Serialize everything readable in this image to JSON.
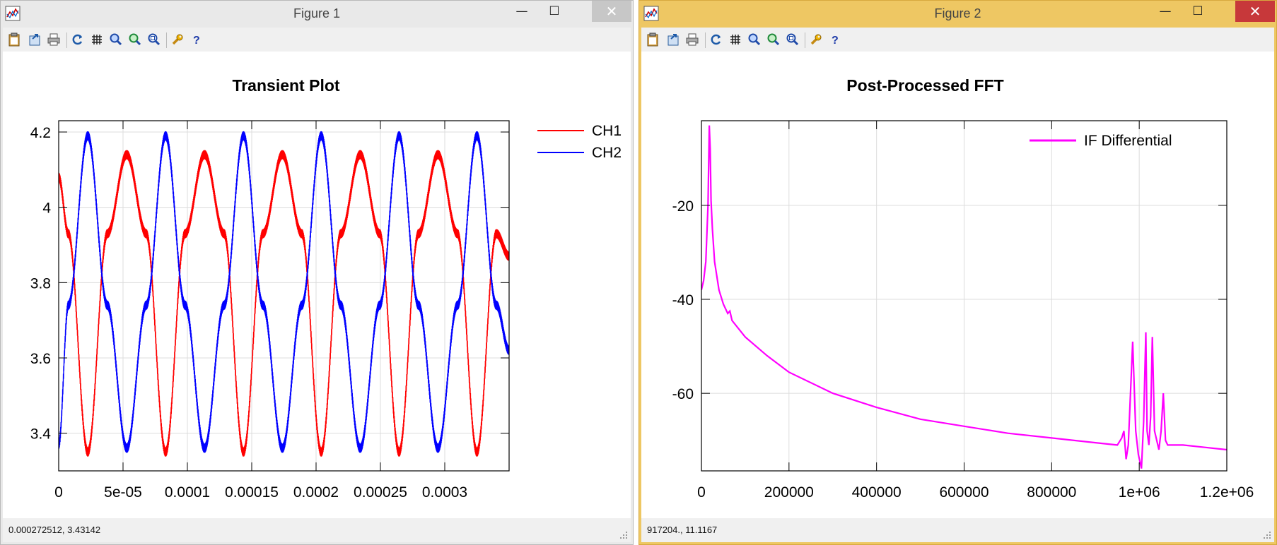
{
  "figure1": {
    "title": "Figure 1",
    "status": "0.000272512,  3.43142",
    "chart_data": {
      "type": "line",
      "title": "Transient Plot",
      "xlim": [
        0,
        0.00035
      ],
      "ylim": [
        3.3,
        4.23
      ],
      "x_ticks": [
        0,
        5e-05,
        0.0001,
        0.00015,
        0.0002,
        0.00025,
        0.0003
      ],
      "x_tick_labels": [
        "0",
        "5e-05",
        "0.0001",
        "0.00015",
        "0.0002",
        "0.00025",
        "0.0003"
      ],
      "y_ticks": [
        3.4,
        3.6,
        3.8,
        4.0,
        4.2
      ],
      "y_tick_labels": [
        "3.4",
        "3.6",
        "3.8",
        "4",
        "4.2"
      ],
      "grid": true,
      "legend": "outside-top-right",
      "series": [
        {
          "name": "CH1",
          "color": "#ff0000",
          "x": [
            0,
            7.5e-06,
            2.26e-05,
            3.78e-05,
            5.29e-05,
            6.8e-05,
            8.31e-05,
            9.82e-05,
            0.0001133,
            0.0001285,
            0.0001436,
            0.0001587,
            0.0001738,
            0.0001889,
            0.000204,
            0.0002192,
            0.0002343,
            0.0002494,
            0.0002645,
            0.0002796,
            0.0002947,
            0.0003099,
            0.000325,
            0.0003401,
            0.00035
          ],
          "y": [
            4.08,
            3.93,
            3.35,
            3.93,
            4.14,
            3.93,
            3.35,
            3.93,
            4.14,
            3.93,
            3.35,
            3.93,
            4.14,
            3.93,
            3.35,
            3.93,
            4.14,
            3.93,
            3.35,
            3.93,
            4.14,
            3.93,
            3.35,
            3.93,
            3.87
          ]
        },
        {
          "name": "CH2",
          "color": "#0000ff",
          "x": [
            0,
            7.5e-06,
            2.26e-05,
            3.78e-05,
            5.29e-05,
            6.8e-05,
            8.31e-05,
            9.82e-05,
            0.0001133,
            0.0001285,
            0.0001436,
            0.0001587,
            0.0001738,
            0.0001889,
            0.000204,
            0.0002192,
            0.0002343,
            0.0002494,
            0.0002645,
            0.0002796,
            0.0002947,
            0.0003099,
            0.000325,
            0.0003401,
            0.00035
          ],
          "y": [
            3.37,
            3.74,
            4.19,
            3.74,
            3.36,
            3.74,
            4.19,
            3.74,
            3.36,
            3.74,
            4.19,
            3.74,
            3.36,
            3.74,
            4.19,
            3.74,
            3.36,
            3.74,
            4.19,
            3.74,
            3.36,
            3.74,
            4.19,
            3.74,
            3.62
          ]
        }
      ]
    }
  },
  "figure2": {
    "title": "Figure 2",
    "status": "917204.,  11.1167",
    "chart_data": {
      "type": "line",
      "title": "Post-Processed FFT",
      "xlim": [
        0,
        1200000
      ],
      "ylim": [
        -76.5,
        -2
      ],
      "x_ticks": [
        0,
        200000,
        400000,
        600000,
        800000,
        1000000,
        1200000
      ],
      "x_tick_labels": [
        "0",
        "200000",
        "400000",
        "600000",
        "800000",
        "1e+06",
        "1.2e+06"
      ],
      "y_ticks": [
        -20,
        -40,
        -60
      ],
      "y_tick_labels": [
        "-20",
        "-40",
        "-60"
      ],
      "grid": true,
      "legend": "top-right",
      "series": [
        {
          "name": "IF Differential",
          "color": "#ff00ff",
          "x": [
            0,
            5000,
            10000,
            15000,
            18000,
            20000,
            22000,
            25000,
            30000,
            40000,
            50000,
            60000,
            65000,
            70000,
            100000,
            150000,
            200000,
            300000,
            400000,
            500000,
            600000,
            700000,
            800000,
            900000,
            950000,
            960000,
            965000,
            970000,
            975000,
            985000,
            992000,
            998000,
            1005000,
            1010000,
            1015000,
            1018000,
            1022000,
            1026000,
            1030000,
            1035000,
            1040000,
            1045000,
            1050000,
            1055000,
            1060000,
            1065000,
            1070000,
            1100000,
            1150000,
            1200000
          ],
          "y": [
            -38,
            -36,
            -32,
            -20,
            -3,
            -8,
            -19,
            -25,
            -32,
            -38,
            -41,
            -43,
            -42.5,
            -44.5,
            -48,
            -52,
            -55.5,
            -60,
            -63,
            -65.5,
            -67,
            -68.5,
            -69.5,
            -70.5,
            -71,
            -69.5,
            -68,
            -74,
            -71,
            -49,
            -68,
            -73,
            -76,
            -66,
            -47,
            -68,
            -71,
            -65,
            -48,
            -68,
            -70,
            -72,
            -68,
            -60,
            -70,
            -71,
            -71,
            -71,
            -71.5,
            -72
          ]
        }
      ]
    }
  }
}
